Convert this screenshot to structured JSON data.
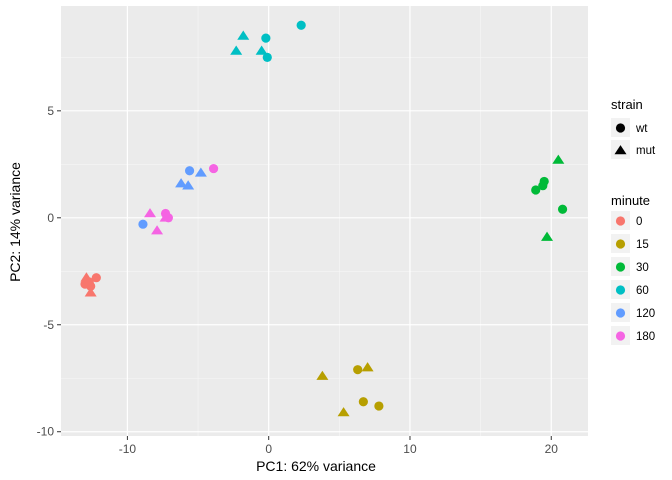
{
  "chart_data": {
    "type": "scatter",
    "xlabel": "PC1: 62% variance",
    "ylabel": "PC2: 14% variance",
    "xlim": [
      -14.7,
      22.6
    ],
    "ylim": [
      -10.2,
      9.9
    ],
    "x_ticks": [
      -10,
      0,
      10,
      20
    ],
    "y_ticks": [
      -10,
      -5,
      0,
      5
    ],
    "grid": true,
    "legend_position": "right",
    "legends": {
      "strain": {
        "title": "strain",
        "entries": [
          {
            "label": "wt",
            "shape": "circle"
          },
          {
            "label": "mut",
            "shape": "triangle"
          }
        ]
      },
      "minute": {
        "title": "minute",
        "entries": [
          {
            "label": "0",
            "color": "#F8766D"
          },
          {
            "label": "15",
            "color": "#B79F00"
          },
          {
            "label": "30",
            "color": "#00BA38"
          },
          {
            "label": "60",
            "color": "#00BFC4"
          },
          {
            "label": "120",
            "color": "#619CFF"
          },
          {
            "label": "180",
            "color": "#F564E3"
          }
        ]
      }
    },
    "points": [
      {
        "x": -13.0,
        "y": -3.1,
        "strain": "wt",
        "minute": "0"
      },
      {
        "x": -12.7,
        "y": -3.0,
        "strain": "wt",
        "minute": "0"
      },
      {
        "x": -12.6,
        "y": -3.2,
        "strain": "wt",
        "minute": "0"
      },
      {
        "x": -12.2,
        "y": -2.8,
        "strain": "wt",
        "minute": "0"
      },
      {
        "x": -12.9,
        "y": -2.8,
        "strain": "mut",
        "minute": "0"
      },
      {
        "x": -12.6,
        "y": -3.5,
        "strain": "mut",
        "minute": "0"
      },
      {
        "x": -12.8,
        "y": -3.0,
        "strain": "mut",
        "minute": "0"
      },
      {
        "x": 6.3,
        "y": -7.1,
        "strain": "wt",
        "minute": "15"
      },
      {
        "x": 6.7,
        "y": -8.6,
        "strain": "wt",
        "minute": "15"
      },
      {
        "x": 7.8,
        "y": -8.8,
        "strain": "wt",
        "minute": "15"
      },
      {
        "x": 3.8,
        "y": -7.4,
        "strain": "mut",
        "minute": "15"
      },
      {
        "x": 7.0,
        "y": -7.0,
        "strain": "mut",
        "minute": "15"
      },
      {
        "x": 5.3,
        "y": -9.1,
        "strain": "mut",
        "minute": "15"
      },
      {
        "x": 18.9,
        "y": 1.3,
        "strain": "wt",
        "minute": "30"
      },
      {
        "x": 19.4,
        "y": 1.5,
        "strain": "wt",
        "minute": "30"
      },
      {
        "x": 19.5,
        "y": 1.7,
        "strain": "wt",
        "minute": "30"
      },
      {
        "x": 20.8,
        "y": 0.4,
        "strain": "wt",
        "minute": "30"
      },
      {
        "x": 20.5,
        "y": 2.7,
        "strain": "mut",
        "minute": "30"
      },
      {
        "x": 19.7,
        "y": -0.9,
        "strain": "mut",
        "minute": "30"
      },
      {
        "x": -0.2,
        "y": 8.4,
        "strain": "wt",
        "minute": "60"
      },
      {
        "x": -0.1,
        "y": 7.5,
        "strain": "wt",
        "minute": "60"
      },
      {
        "x": 2.3,
        "y": 9.0,
        "strain": "wt",
        "minute": "60"
      },
      {
        "x": -1.8,
        "y": 8.5,
        "strain": "mut",
        "minute": "60"
      },
      {
        "x": -2.3,
        "y": 7.8,
        "strain": "mut",
        "minute": "60"
      },
      {
        "x": -0.5,
        "y": 7.8,
        "strain": "mut",
        "minute": "60"
      },
      {
        "x": -5.6,
        "y": 2.2,
        "strain": "wt",
        "minute": "120"
      },
      {
        "x": -8.9,
        "y": -0.3,
        "strain": "wt",
        "minute": "120"
      },
      {
        "x": -6.2,
        "y": 1.6,
        "strain": "mut",
        "minute": "120"
      },
      {
        "x": -5.7,
        "y": 1.5,
        "strain": "mut",
        "minute": "120"
      },
      {
        "x": -4.8,
        "y": 2.1,
        "strain": "mut",
        "minute": "120"
      },
      {
        "x": -7.3,
        "y": 0.2,
        "strain": "wt",
        "minute": "180"
      },
      {
        "x": -7.1,
        "y": 0.0,
        "strain": "wt",
        "minute": "180"
      },
      {
        "x": -3.9,
        "y": 2.3,
        "strain": "wt",
        "minute": "180"
      },
      {
        "x": -8.4,
        "y": 0.2,
        "strain": "mut",
        "minute": "180"
      },
      {
        "x": -7.9,
        "y": -0.6,
        "strain": "mut",
        "minute": "180"
      },
      {
        "x": -7.3,
        "y": 0.0,
        "strain": "mut",
        "minute": "180"
      }
    ]
  }
}
